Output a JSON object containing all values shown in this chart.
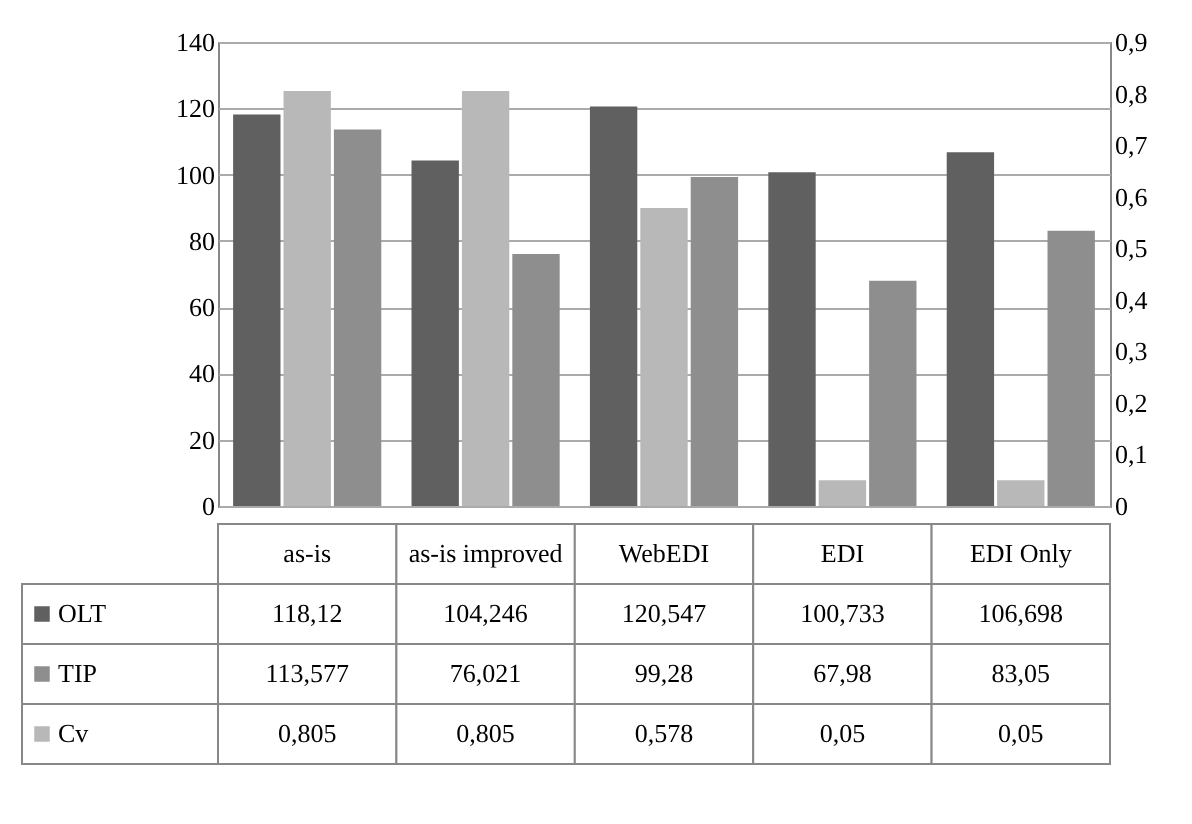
{
  "chart_data": {
    "type": "bar",
    "categories": [
      "as-is",
      "as-is improved",
      "WebEDI",
      "EDI",
      "EDI Only"
    ],
    "series": [
      {
        "name": "OLT",
        "color": "#606060",
        "values": [
          118.12,
          104.246,
          120.547,
          100.733,
          106.698
        ],
        "value_labels": [
          "118,12",
          "104,246",
          "120,547",
          "100,733",
          "106,698"
        ]
      },
      {
        "name": "TIP",
        "color": "#8e8e8e",
        "values": [
          113.577,
          76.021,
          99.28,
          67.98,
          83.05
        ],
        "value_labels": [
          "113,577",
          "76,021",
          "99,28",
          "67,98",
          "83,05"
        ]
      },
      {
        "name": "Cv",
        "color": "#b8b8b8",
        "axis": "y2",
        "values": [
          0.805,
          0.805,
          0.578,
          0.05,
          0.05
        ],
        "value_labels": [
          "0,805",
          "0,805",
          "0,578",
          "0,05",
          "0,05"
        ]
      }
    ],
    "ylim": [
      0,
      140
    ],
    "yticks": [
      0,
      20,
      40,
      60,
      80,
      100,
      120,
      140
    ],
    "y2lim": [
      0,
      0.9
    ],
    "y2ticks": [
      0,
      {
        "value": 0.1,
        "label": "0,1"
      },
      {
        "value": 0.2,
        "label": "0,2"
      },
      {
        "value": 0.3,
        "label": "0,3"
      },
      {
        "value": 0.4,
        "label": "0,4"
      },
      {
        "value": 0.5,
        "label": "0,5"
      },
      {
        "value": 0.6,
        "label": "0,6"
      },
      {
        "value": 0.7,
        "label": "0,7"
      },
      {
        "value": 0.8,
        "label": "0,8"
      },
      {
        "value": 0.9,
        "label": "0,9"
      }
    ],
    "grid": "y",
    "legend": "bottom"
  }
}
